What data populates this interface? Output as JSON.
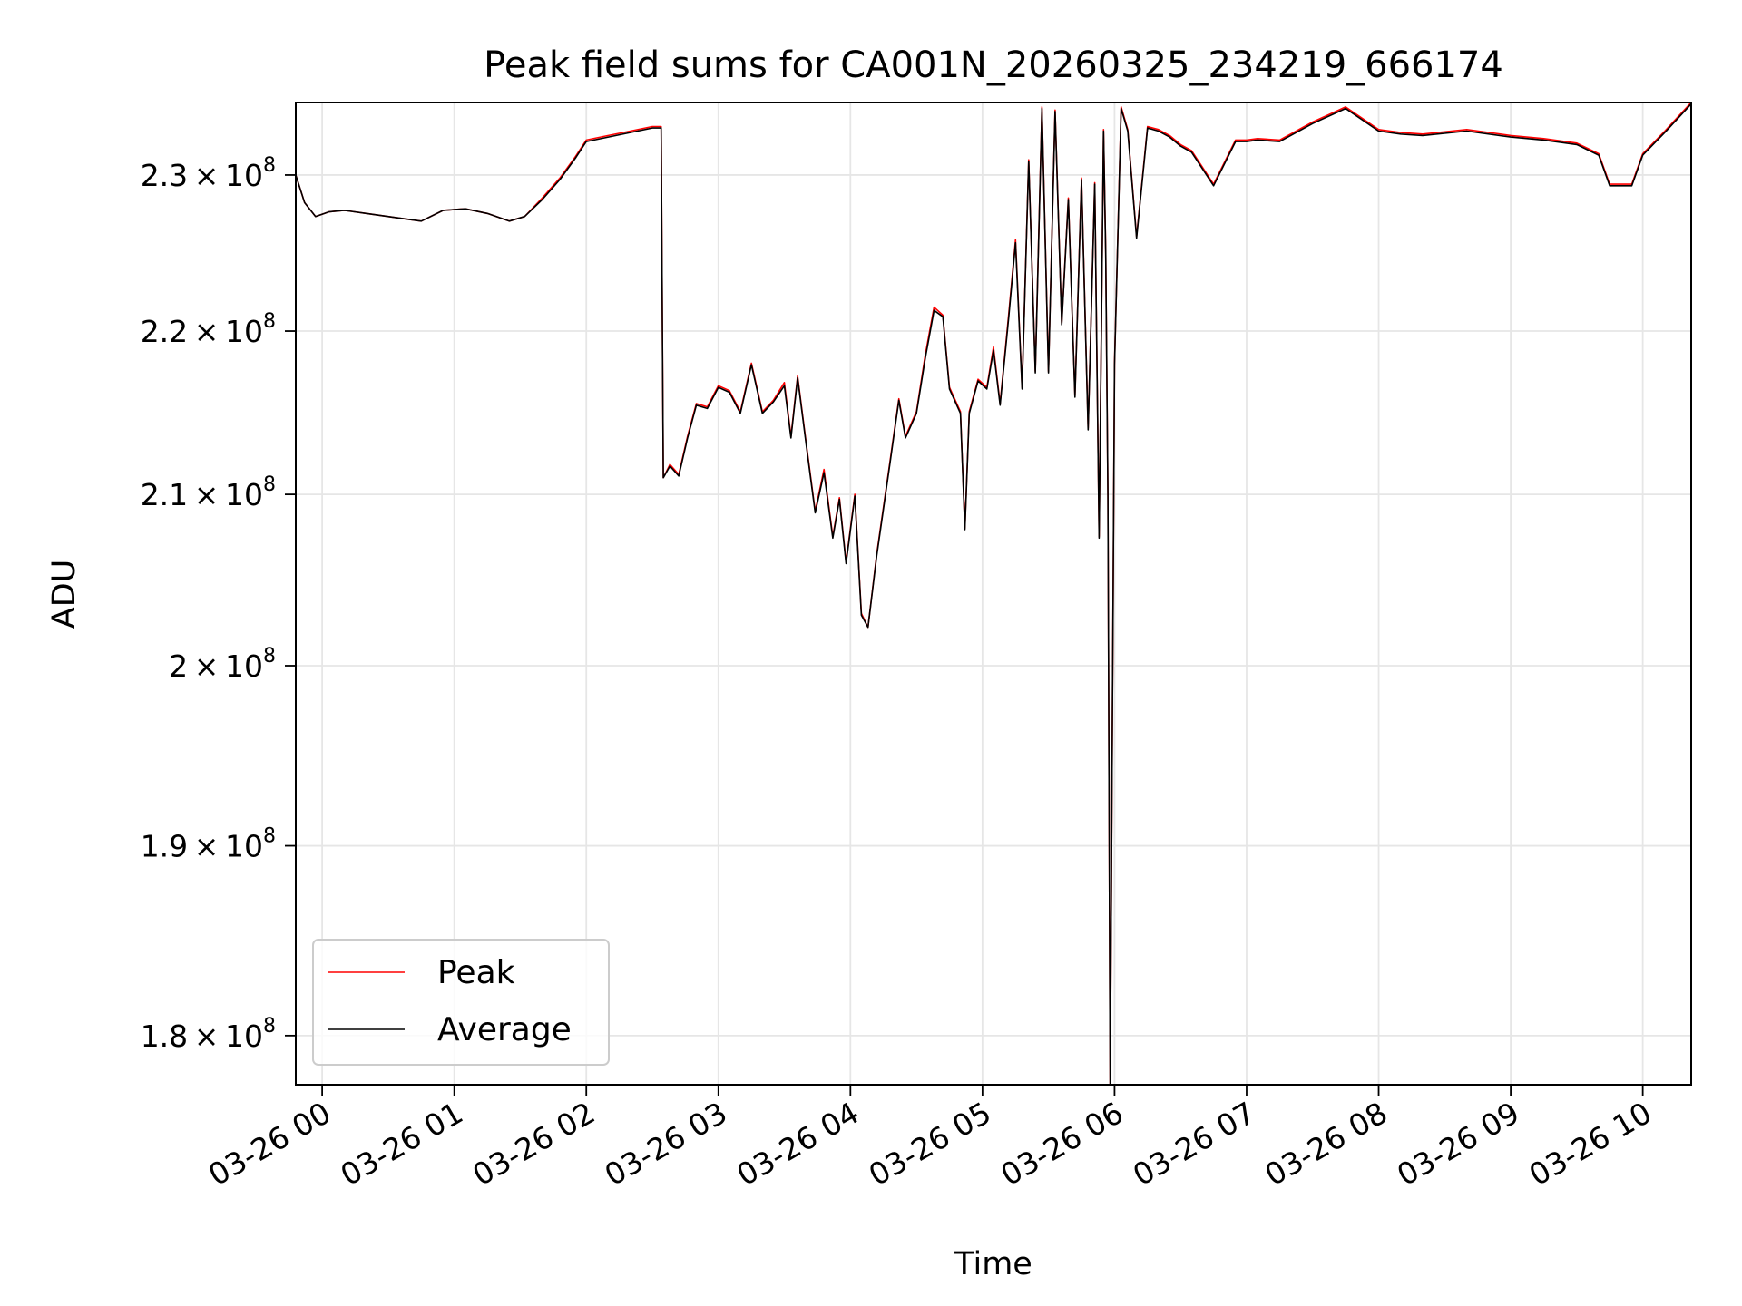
{
  "chart_data": {
    "type": "line",
    "title": "Peak field sums for CA001N_20260325_234219_666174",
    "xlabel": "Time",
    "ylabel": "ADU",
    "yscale": "log",
    "grid": true,
    "legend_position": "lower-left",
    "xlim": [
      "2026-03-25 23:48",
      "2026-03-26 10:22"
    ],
    "ylim": [
      177500000,
      234800000
    ],
    "x_ticks": [
      "03-26 00",
      "03-26 01",
      "03-26 02",
      "03-26 03",
      "03-26 04",
      "03-26 05",
      "03-26 06",
      "03-26 07",
      "03-26 08",
      "03-26 09",
      "03-26 10"
    ],
    "y_ticks": [
      {
        "value": 180000000,
        "mantissa": "1.8",
        "exp": "8"
      },
      {
        "value": 190000000,
        "mantissa": "1.9",
        "exp": "8"
      },
      {
        "value": 200000000,
        "mantissa": "2",
        "exp": "8"
      },
      {
        "value": 210000000,
        "mantissa": "2.1",
        "exp": "8"
      },
      {
        "value": 220000000,
        "mantissa": "2.2",
        "exp": "8"
      },
      {
        "value": 230000000,
        "mantissa": "2.3",
        "exp": "8"
      }
    ],
    "x": [
      "23:48",
      "23:52",
      "23:57",
      "00:03",
      "00:10",
      "00:20",
      "00:35",
      "00:45",
      "00:55",
      "01:05",
      "01:15",
      "01:25",
      "01:32",
      "01:40",
      "01:48",
      "01:55",
      "02:00",
      "02:10",
      "02:20",
      "02:30",
      "02:34",
      "02:35",
      "02:38",
      "02:42",
      "02:46",
      "02:50",
      "02:55",
      "03:00",
      "03:05",
      "03:10",
      "03:15",
      "03:20",
      "03:25",
      "03:30",
      "03:33",
      "03:36",
      "03:40",
      "03:44",
      "03:48",
      "03:52",
      "03:55",
      "03:58",
      "04:02",
      "04:05",
      "04:08",
      "04:12",
      "04:18",
      "04:22",
      "04:25",
      "04:30",
      "04:34",
      "04:38",
      "04:42",
      "04:45",
      "04:50",
      "04:52",
      "04:54",
      "04:58",
      "05:02",
      "05:05",
      "05:08",
      "05:12",
      "05:15",
      "05:18",
      "05:21",
      "05:24",
      "05:27",
      "05:30",
      "05:33",
      "05:36",
      "05:39",
      "05:42",
      "05:45",
      "05:48",
      "05:51",
      "05:53",
      "05:55",
      "05:56",
      "05:57",
      "05:58",
      "06:00",
      "06:03",
      "06:06",
      "06:10",
      "06:15",
      "06:20",
      "06:25",
      "06:30",
      "06:35",
      "06:45",
      "06:55",
      "07:00",
      "07:05",
      "07:15",
      "07:30",
      "07:45",
      "08:00",
      "08:10",
      "08:20",
      "08:40",
      "09:00",
      "09:15",
      "09:30",
      "09:40",
      "09:45",
      "09:50",
      "09:55",
      "10:00",
      "10:10",
      "10:22"
    ],
    "series": [
      {
        "name": "Peak",
        "color": "#ff0000",
        "values": [
          230000000,
          228200000,
          227300000,
          227600000,
          227700000,
          227500000,
          227200000,
          227000000,
          227700000,
          227800000,
          227500000,
          227000000,
          227300000,
          228500000,
          229800000,
          231200000,
          232300000,
          232600000,
          232900000,
          233200000,
          233200000,
          211000000,
          211800000,
          211200000,
          213500000,
          215500000,
          215300000,
          216600000,
          216300000,
          215000000,
          218000000,
          215000000,
          215700000,
          216800000,
          213500000,
          217200000,
          213000000,
          209000000,
          211500000,
          207500000,
          209800000,
          206000000,
          210000000,
          203000000,
          202200000,
          206500000,
          212000000,
          215800000,
          213500000,
          215000000,
          218500000,
          221500000,
          221000000,
          216500000,
          215000000,
          208000000,
          215000000,
          217000000,
          216500000,
          219000000,
          215500000,
          221200000,
          225800000,
          216500000,
          231000000,
          217500000,
          234500000,
          217500000,
          234300000,
          220500000,
          228500000,
          216000000,
          229800000,
          214000000,
          229500000,
          207500000,
          233000000,
          225000000,
          210000000,
          177500000,
          218000000,
          234500000,
          233000000,
          226000000,
          233200000,
          233000000,
          232600000,
          232000000,
          231600000,
          229400000,
          232300000,
          232300000,
          232400000,
          232300000,
          233500000,
          234500000,
          233000000,
          232800000,
          232700000,
          233000000,
          232600000,
          232400000,
          232100000,
          231400000,
          229400000,
          229400000,
          229400000,
          231400000,
          232900000,
          234800000
        ]
      },
      {
        "name": "Average",
        "color": "#000000",
        "values": [
          230000000,
          228200000,
          227300000,
          227600000,
          227700000,
          227500000,
          227200000,
          227000000,
          227700000,
          227800000,
          227500000,
          227000000,
          227300000,
          228400000,
          229700000,
          231100000,
          232200000,
          232500000,
          232800000,
          233100000,
          233100000,
          211000000,
          211700000,
          211100000,
          213400000,
          215400000,
          215200000,
          216500000,
          216200000,
          214900000,
          217900000,
          214900000,
          215600000,
          216600000,
          213400000,
          217100000,
          212900000,
          208900000,
          211300000,
          207400000,
          209700000,
          205900000,
          209900000,
          202900000,
          202200000,
          206400000,
          211900000,
          215700000,
          213400000,
          214900000,
          218300000,
          221300000,
          220900000,
          216400000,
          214900000,
          207900000,
          214900000,
          216900000,
          216400000,
          218800000,
          215400000,
          221000000,
          225600000,
          216400000,
          230900000,
          217400000,
          234400000,
          217400000,
          234200000,
          220400000,
          228400000,
          215900000,
          229700000,
          213900000,
          229400000,
          207400000,
          232900000,
          224900000,
          209900000,
          177500000,
          217900000,
          234400000,
          232900000,
          225900000,
          233100000,
          232900000,
          232500000,
          231900000,
          231500000,
          229300000,
          232200000,
          232200000,
          232300000,
          232200000,
          233400000,
          234400000,
          232900000,
          232700000,
          232600000,
          232900000,
          232500000,
          232300000,
          232000000,
          231300000,
          229300000,
          229300000,
          229300000,
          231300000,
          232800000,
          234700000
        ]
      }
    ]
  }
}
